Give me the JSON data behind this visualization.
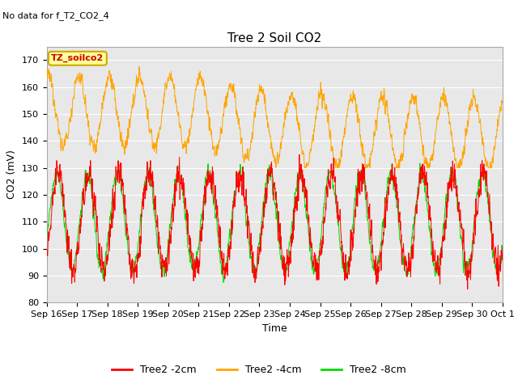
{
  "title": "Tree 2 Soil CO2",
  "no_data_text": "No data for f_T2_CO2_4",
  "ylabel": "CO2 (mV)",
  "xlabel": "Time",
  "ylim": [
    80,
    175
  ],
  "xtick_labels": [
    "Sep 16",
    "Sep 17",
    "Sep 18",
    "Sep 19",
    "Sep 20",
    "Sep 21",
    "Sep 22",
    "Sep 23",
    "Sep 24",
    "Sep 25",
    "Sep 26",
    "Sep 27",
    "Sep 28",
    "Sep 29",
    "Sep 30",
    "Oct 1"
  ],
  "legend_labels": [
    "Tree2 -2cm",
    "Tree2 -4cm",
    "Tree2 -8cm"
  ],
  "color_2cm": "#ff0000",
  "color_4cm": "#ffa500",
  "color_8cm": "#00dd00",
  "tz_soilco2_box_color": "#ffff99",
  "tz_soilco2_border_color": "#ccaa00",
  "bg_gray_color": "#e8e8e8",
  "grid_color": "#ffffff",
  "title_fontsize": 11,
  "axis_fontsize": 9,
  "tick_fontsize": 8
}
